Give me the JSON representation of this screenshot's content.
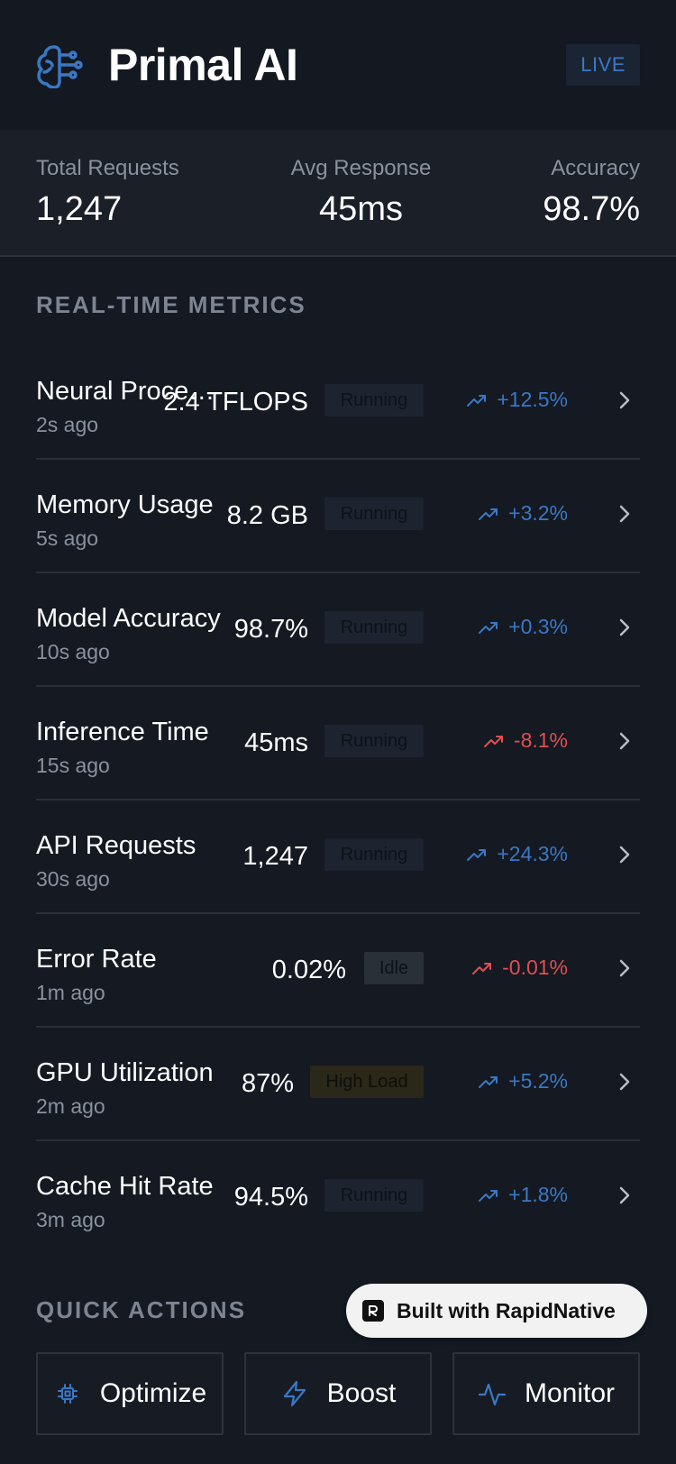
{
  "app": {
    "title": "Primal AI",
    "live_label": "LIVE",
    "brand_icon": "brain-icon",
    "accent_color": "#3b78c4"
  },
  "stats": [
    {
      "label": "Total Requests",
      "value": "1,247"
    },
    {
      "label": "Avg Response",
      "value": "45ms"
    },
    {
      "label": "Accuracy",
      "value": "98.7%"
    }
  ],
  "realtime": {
    "section_title": "REAL-TIME METRICS",
    "metrics": [
      {
        "name": "Neural Processing",
        "time": "2s ago",
        "value": "2.4 TFLOPS",
        "status": "Running",
        "change": "+12.5%",
        "trend": "up"
      },
      {
        "name": "Memory Usage",
        "time": "5s ago",
        "value": "8.2 GB",
        "status": "Running",
        "change": "+3.2%",
        "trend": "up"
      },
      {
        "name": "Model Accuracy",
        "time": "10s ago",
        "value": "98.7%",
        "status": "Running",
        "change": "+0.3%",
        "trend": "up"
      },
      {
        "name": "Inference Time",
        "time": "15s ago",
        "value": "45ms",
        "status": "Running",
        "change": "-8.1%",
        "trend": "down"
      },
      {
        "name": "API Requests",
        "time": "30s ago",
        "value": "1,247",
        "status": "Running",
        "change": "+24.3%",
        "trend": "up"
      },
      {
        "name": "Error Rate",
        "time": "1m ago",
        "value": "0.02%",
        "status": "Idle",
        "change": "-0.01%",
        "trend": "down"
      },
      {
        "name": "GPU Utilization",
        "time": "2m ago",
        "value": "87%",
        "status": "High Load",
        "change": "+5.2%",
        "trend": "up"
      },
      {
        "name": "Cache Hit Rate",
        "time": "3m ago",
        "value": "94.5%",
        "status": "Running",
        "change": "+1.8%",
        "trend": "up"
      }
    ],
    "colors": {
      "up": "#3b78c4",
      "down": "#e04f50"
    }
  },
  "quick_actions": {
    "section_title": "QUICK ACTIONS",
    "buttons": [
      {
        "label": "Optimize",
        "icon": "cpu-icon"
      },
      {
        "label": "Boost",
        "icon": "lightning-icon"
      },
      {
        "label": "Monitor",
        "icon": "activity-icon"
      }
    ]
  },
  "badge": {
    "label": "Built with RapidNative",
    "icon": "rapidnative-logo-icon"
  }
}
